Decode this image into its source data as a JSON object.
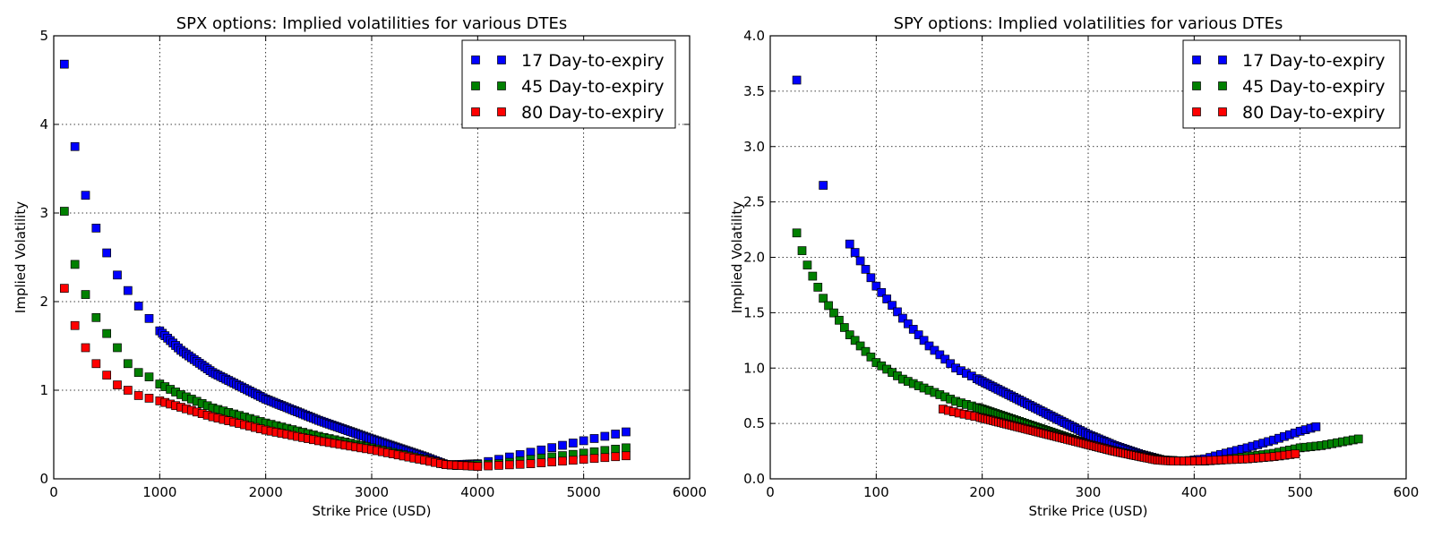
{
  "chart_data": [
    {
      "type": "scatter",
      "title": "SPX options: Implied volatilities for various DTEs",
      "xlabel": "Strike Price (USD)",
      "ylabel": "Implied Volatility",
      "xlim": [
        0,
        6000
      ],
      "ylim": [
        0,
        5
      ],
      "xticks": [
        0,
        1000,
        2000,
        3000,
        4000,
        5000,
        6000
      ],
      "xtick_labels": [
        "0",
        "1000",
        "2000",
        "3000",
        "4000",
        "5000",
        "6000"
      ],
      "yticks": [
        0,
        1,
        2,
        3,
        4,
        5
      ],
      "ytick_labels": [
        "0",
        "1",
        "2",
        "3",
        "4",
        "5"
      ],
      "grid": true,
      "legend_position": "top-right",
      "series": [
        {
          "name": "17 Day-to-expiry",
          "color": "#0000ff",
          "x_range": [
            100,
            5400
          ],
          "anchors": [
            [
              100,
              4.68
            ],
            [
              200,
              3.75
            ],
            [
              300,
              3.2
            ],
            [
              400,
              2.83
            ],
            [
              500,
              2.55
            ],
            [
              600,
              2.3
            ],
            [
              800,
              1.95
            ],
            [
              1000,
              1.67
            ],
            [
              1200,
              1.45
            ],
            [
              1500,
              1.2
            ],
            [
              2000,
              0.9
            ],
            [
              2500,
              0.66
            ],
            [
              3000,
              0.45
            ],
            [
              3500,
              0.25
            ],
            [
              3700,
              0.16
            ],
            [
              3800,
              0.16
            ],
            [
              4000,
              0.17
            ],
            [
              4200,
              0.22
            ],
            [
              4500,
              0.3
            ],
            [
              5000,
              0.43
            ],
            [
              5400,
              0.53
            ]
          ]
        },
        {
          "name": "45 Day-to-expiry",
          "color": "#008000",
          "x_range": [
            100,
            5400
          ],
          "anchors": [
            [
              100,
              3.02
            ],
            [
              200,
              2.42
            ],
            [
              300,
              2.08
            ],
            [
              400,
              1.82
            ],
            [
              500,
              1.64
            ],
            [
              600,
              1.48
            ],
            [
              700,
              1.3
            ],
            [
              800,
              1.2
            ],
            [
              900,
              1.15
            ],
            [
              1000,
              1.07
            ],
            [
              1200,
              0.95
            ],
            [
              1500,
              0.8
            ],
            [
              2000,
              0.63
            ],
            [
              2500,
              0.48
            ],
            [
              3000,
              0.35
            ],
            [
              3500,
              0.22
            ],
            [
              3700,
              0.16
            ],
            [
              3800,
              0.15
            ],
            [
              4000,
              0.16
            ],
            [
              4200,
              0.17
            ],
            [
              4500,
              0.22
            ],
            [
              5000,
              0.29
            ],
            [
              5400,
              0.35
            ]
          ]
        },
        {
          "name": "80 Day-to-expiry",
          "color": "#ff0000",
          "x_range": [
            100,
            5400
          ],
          "anchors": [
            [
              100,
              2.15
            ],
            [
              200,
              1.73
            ],
            [
              300,
              1.48
            ],
            [
              400,
              1.3
            ],
            [
              500,
              1.17
            ],
            [
              600,
              1.06
            ],
            [
              700,
              1.0
            ],
            [
              800,
              0.94
            ],
            [
              1000,
              0.88
            ],
            [
              1500,
              0.7
            ],
            [
              2000,
              0.55
            ],
            [
              2500,
              0.43
            ],
            [
              3000,
              0.33
            ],
            [
              3500,
              0.21
            ],
            [
              3700,
              0.16
            ],
            [
              4000,
              0.14
            ],
            [
              4500,
              0.17
            ],
            [
              5000,
              0.22
            ],
            [
              5400,
              0.26
            ]
          ]
        }
      ]
    },
    {
      "type": "scatter",
      "title": "SPY options: Implied volatilities for various DTEs",
      "xlabel": "Strike Price (USD)",
      "ylabel": "Implied Volatility",
      "xlim": [
        0,
        600
      ],
      "ylim": [
        0,
        4
      ],
      "xticks": [
        0,
        100,
        200,
        300,
        400,
        500,
        600
      ],
      "xtick_labels": [
        "0",
        "100",
        "200",
        "300",
        "400",
        "500",
        "600"
      ],
      "yticks": [
        0,
        0.5,
        1,
        1.5,
        2,
        2.5,
        3,
        3.5,
        4
      ],
      "ytick_labels": [
        "0.0",
        "0.5",
        "1.0",
        "1.5",
        "2.0",
        "2.5",
        "3.0",
        "3.5",
        "4.0"
      ],
      "grid": true,
      "legend_position": "top-right",
      "series": [
        {
          "name": "17 Day-to-expiry",
          "color": "#0000ff",
          "x_range": [
            25,
            515
          ],
          "anchors": [
            [
              25,
              3.6
            ],
            [
              50,
              2.65
            ],
            [
              75,
              2.12
            ],
            [
              100,
              1.74
            ],
            [
              125,
              1.45
            ],
            [
              150,
              1.2
            ],
            [
              175,
              1.0
            ],
            [
              200,
              0.88
            ],
            [
              225,
              0.76
            ],
            [
              250,
              0.64
            ],
            [
              275,
              0.52
            ],
            [
              300,
              0.4
            ],
            [
              325,
              0.3
            ],
            [
              350,
              0.22
            ],
            [
              370,
              0.17
            ],
            [
              390,
              0.16
            ],
            [
              410,
              0.18
            ],
            [
              425,
              0.22
            ],
            [
              450,
              0.28
            ],
            [
              475,
              0.35
            ],
            [
              500,
              0.43
            ],
            [
              515,
              0.47
            ]
          ]
        },
        {
          "name": "45 Day-to-expiry",
          "color": "#008000",
          "x_range": [
            25,
            555
          ],
          "anchors": [
            [
              25,
              2.22
            ],
            [
              30,
              2.06
            ],
            [
              35,
              1.93
            ],
            [
              50,
              1.63
            ],
            [
              75,
              1.3
            ],
            [
              100,
              1.05
            ],
            [
              125,
              0.9
            ],
            [
              150,
              0.8
            ],
            [
              175,
              0.7
            ],
            [
              200,
              0.63
            ],
            [
              225,
              0.55
            ],
            [
              250,
              0.47
            ],
            [
              275,
              0.39
            ],
            [
              300,
              0.31
            ],
            [
              325,
              0.25
            ],
            [
              350,
              0.2
            ],
            [
              370,
              0.17
            ],
            [
              390,
              0.16
            ],
            [
              410,
              0.16
            ],
            [
              425,
              0.17
            ],
            [
              450,
              0.2
            ],
            [
              475,
              0.23
            ],
            [
              500,
              0.28
            ],
            [
              520,
              0.3
            ],
            [
              555,
              0.36
            ]
          ]
        },
        {
          "name": "80 Day-to-expiry",
          "color": "#ff0000",
          "x_range": [
            163,
            500
          ],
          "anchors": [
            [
              163,
              0.63
            ],
            [
              175,
              0.6
            ],
            [
              200,
              0.55
            ],
            [
              225,
              0.49
            ],
            [
              250,
              0.43
            ],
            [
              275,
              0.37
            ],
            [
              300,
              0.31
            ],
            [
              325,
              0.25
            ],
            [
              350,
              0.2
            ],
            [
              365,
              0.17
            ],
            [
              380,
              0.16
            ],
            [
              400,
              0.16
            ],
            [
              425,
              0.17
            ],
            [
              450,
              0.18
            ],
            [
              475,
              0.2
            ],
            [
              500,
              0.23
            ]
          ]
        }
      ]
    }
  ]
}
